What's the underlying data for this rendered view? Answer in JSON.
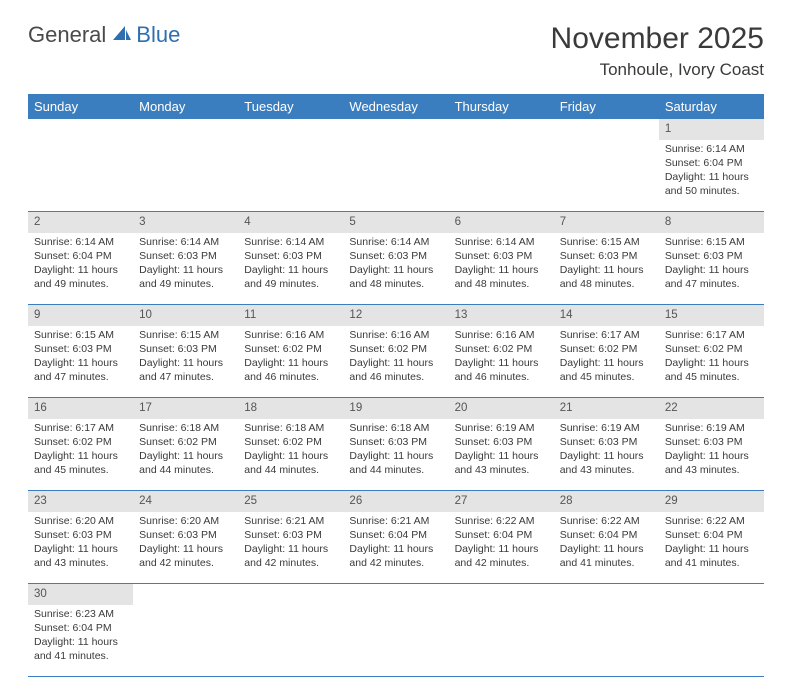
{
  "brand": {
    "part1": "General",
    "part2": "Blue",
    "color1": "#5a5a5a",
    "color2": "#2f6fb0",
    "sail_color": "#2f6fb0"
  },
  "title": "November 2025",
  "location": "Tonhoule, Ivory Coast",
  "header_bg": "#3b7ec0",
  "daynum_bg": "#e4e4e4",
  "divider_color": "#3b7ec0",
  "daynames": [
    "Sunday",
    "Monday",
    "Tuesday",
    "Wednesday",
    "Thursday",
    "Friday",
    "Saturday"
  ],
  "weeks": [
    [
      null,
      null,
      null,
      null,
      null,
      null,
      {
        "n": "1",
        "sunrise": "6:14 AM",
        "sunset": "6:04 PM",
        "daylight": "11 hours and 50 minutes."
      }
    ],
    [
      {
        "n": "2",
        "sunrise": "6:14 AM",
        "sunset": "6:04 PM",
        "daylight": "11 hours and 49 minutes."
      },
      {
        "n": "3",
        "sunrise": "6:14 AM",
        "sunset": "6:03 PM",
        "daylight": "11 hours and 49 minutes."
      },
      {
        "n": "4",
        "sunrise": "6:14 AM",
        "sunset": "6:03 PM",
        "daylight": "11 hours and 49 minutes."
      },
      {
        "n": "5",
        "sunrise": "6:14 AM",
        "sunset": "6:03 PM",
        "daylight": "11 hours and 48 minutes."
      },
      {
        "n": "6",
        "sunrise": "6:14 AM",
        "sunset": "6:03 PM",
        "daylight": "11 hours and 48 minutes."
      },
      {
        "n": "7",
        "sunrise": "6:15 AM",
        "sunset": "6:03 PM",
        "daylight": "11 hours and 48 minutes."
      },
      {
        "n": "8",
        "sunrise": "6:15 AM",
        "sunset": "6:03 PM",
        "daylight": "11 hours and 47 minutes."
      }
    ],
    [
      {
        "n": "9",
        "sunrise": "6:15 AM",
        "sunset": "6:03 PM",
        "daylight": "11 hours and 47 minutes."
      },
      {
        "n": "10",
        "sunrise": "6:15 AM",
        "sunset": "6:03 PM",
        "daylight": "11 hours and 47 minutes."
      },
      {
        "n": "11",
        "sunrise": "6:16 AM",
        "sunset": "6:02 PM",
        "daylight": "11 hours and 46 minutes."
      },
      {
        "n": "12",
        "sunrise": "6:16 AM",
        "sunset": "6:02 PM",
        "daylight": "11 hours and 46 minutes."
      },
      {
        "n": "13",
        "sunrise": "6:16 AM",
        "sunset": "6:02 PM",
        "daylight": "11 hours and 46 minutes."
      },
      {
        "n": "14",
        "sunrise": "6:17 AM",
        "sunset": "6:02 PM",
        "daylight": "11 hours and 45 minutes."
      },
      {
        "n": "15",
        "sunrise": "6:17 AM",
        "sunset": "6:02 PM",
        "daylight": "11 hours and 45 minutes."
      }
    ],
    [
      {
        "n": "16",
        "sunrise": "6:17 AM",
        "sunset": "6:02 PM",
        "daylight": "11 hours and 45 minutes."
      },
      {
        "n": "17",
        "sunrise": "6:18 AM",
        "sunset": "6:02 PM",
        "daylight": "11 hours and 44 minutes."
      },
      {
        "n": "18",
        "sunrise": "6:18 AM",
        "sunset": "6:02 PM",
        "daylight": "11 hours and 44 minutes."
      },
      {
        "n": "19",
        "sunrise": "6:18 AM",
        "sunset": "6:03 PM",
        "daylight": "11 hours and 44 minutes."
      },
      {
        "n": "20",
        "sunrise": "6:19 AM",
        "sunset": "6:03 PM",
        "daylight": "11 hours and 43 minutes."
      },
      {
        "n": "21",
        "sunrise": "6:19 AM",
        "sunset": "6:03 PM",
        "daylight": "11 hours and 43 minutes."
      },
      {
        "n": "22",
        "sunrise": "6:19 AM",
        "sunset": "6:03 PM",
        "daylight": "11 hours and 43 minutes."
      }
    ],
    [
      {
        "n": "23",
        "sunrise": "6:20 AM",
        "sunset": "6:03 PM",
        "daylight": "11 hours and 43 minutes."
      },
      {
        "n": "24",
        "sunrise": "6:20 AM",
        "sunset": "6:03 PM",
        "daylight": "11 hours and 42 minutes."
      },
      {
        "n": "25",
        "sunrise": "6:21 AM",
        "sunset": "6:03 PM",
        "daylight": "11 hours and 42 minutes."
      },
      {
        "n": "26",
        "sunrise": "6:21 AM",
        "sunset": "6:04 PM",
        "daylight": "11 hours and 42 minutes."
      },
      {
        "n": "27",
        "sunrise": "6:22 AM",
        "sunset": "6:04 PM",
        "daylight": "11 hours and 42 minutes."
      },
      {
        "n": "28",
        "sunrise": "6:22 AM",
        "sunset": "6:04 PM",
        "daylight": "11 hours and 41 minutes."
      },
      {
        "n": "29",
        "sunrise": "6:22 AM",
        "sunset": "6:04 PM",
        "daylight": "11 hours and 41 minutes."
      }
    ],
    [
      {
        "n": "30",
        "sunrise": "6:23 AM",
        "sunset": "6:04 PM",
        "daylight": "11 hours and 41 minutes."
      },
      null,
      null,
      null,
      null,
      null,
      null
    ]
  ],
  "labels": {
    "sunrise": "Sunrise:",
    "sunset": "Sunset:",
    "daylight": "Daylight:"
  }
}
